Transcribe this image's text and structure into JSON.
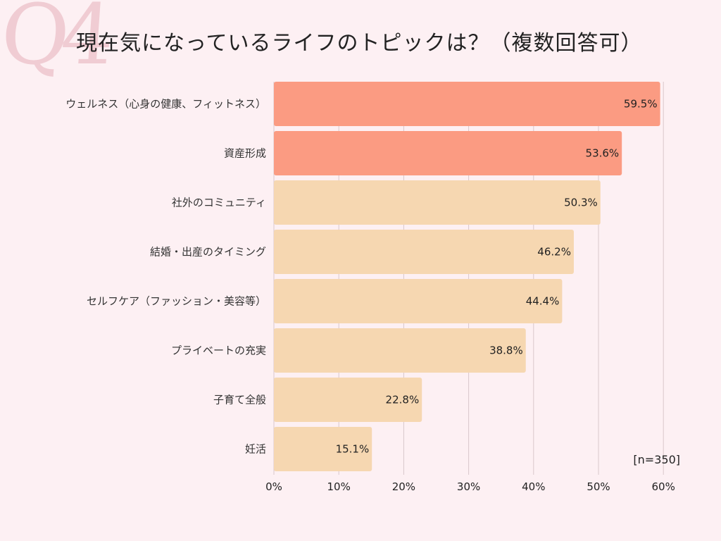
{
  "decor": {
    "q_number": "Q4"
  },
  "chart_data": {
    "type": "bar",
    "orientation": "horizontal",
    "title": "現在気になっているライフのトピックは？（複数回答可）",
    "categories": [
      "ウェルネス（心身の健康、フィットネス）",
      "資産形成",
      "社外のコミュニティ",
      "結婚・出産のタイミング",
      "セルフケア（ファッション・美容等）",
      "プライベートの充実",
      "子育て全般",
      "妊活"
    ],
    "values": [
      59.5,
      53.6,
      50.3,
      46.2,
      44.4,
      38.8,
      22.8,
      15.1
    ],
    "value_labels": [
      "59.5%",
      "53.6%",
      "50.3%",
      "46.2%",
      "44.4%",
      "38.8%",
      "22.8%",
      "15.1%"
    ],
    "highlight": [
      true,
      true,
      false,
      false,
      false,
      false,
      false,
      false
    ],
    "colors": {
      "highlight": "#fb9b82",
      "normal": "#f6d7b1",
      "grid": "#d9c7cb"
    },
    "xlim": [
      0,
      60
    ],
    "xticks": [
      0,
      10,
      20,
      30,
      40,
      50,
      60
    ],
    "xtick_labels": [
      "0%",
      "10%",
      "20%",
      "30%",
      "40%",
      "50%",
      "60%"
    ],
    "grid": true,
    "sample_note": "[n=350]"
  }
}
